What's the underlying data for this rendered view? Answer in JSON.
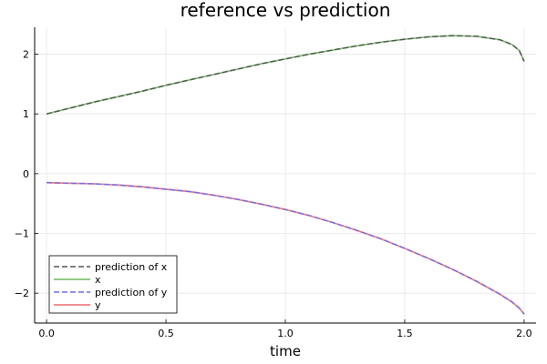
{
  "chart_data": {
    "type": "line",
    "title": "reference vs prediction",
    "xlabel": "time",
    "ylabel": "",
    "xlim": [
      -0.05,
      2.05
    ],
    "ylim": [
      -2.5,
      2.45
    ],
    "xticks": [
      0.0,
      0.5,
      1.0,
      1.5,
      2.0
    ],
    "xtick_labels": [
      "0.0",
      "0.5",
      "1.0",
      "1.5",
      "2.0"
    ],
    "yticks": [
      -2,
      -1,
      0,
      1,
      2
    ],
    "ytick_labels": [
      "−2",
      "−1",
      "0",
      "1",
      "2"
    ],
    "grid": true,
    "legend_position": "bottom-left",
    "x": [
      0.0,
      0.1,
      0.2,
      0.3,
      0.4,
      0.5,
      0.6,
      0.7,
      0.8,
      0.9,
      1.0,
      1.1,
      1.2,
      1.3,
      1.4,
      1.5,
      1.6,
      1.7,
      1.8,
      1.9,
      1.95,
      1.98,
      2.0
    ],
    "series": [
      {
        "name": "prediction of x",
        "color": "#555555",
        "dash": "dashed",
        "values": [
          1.0,
          1.1,
          1.2,
          1.29,
          1.38,
          1.48,
          1.57,
          1.66,
          1.75,
          1.84,
          1.92,
          2.0,
          2.07,
          2.14,
          2.2,
          2.25,
          2.29,
          2.31,
          2.3,
          2.24,
          2.16,
          2.06,
          1.88
        ]
      },
      {
        "name": "x",
        "color": "#82c276",
        "dash": "solid",
        "values": [
          1.0,
          1.1,
          1.2,
          1.29,
          1.38,
          1.48,
          1.57,
          1.66,
          1.75,
          1.84,
          1.92,
          2.0,
          2.07,
          2.14,
          2.2,
          2.25,
          2.29,
          2.31,
          2.3,
          2.24,
          2.16,
          2.06,
          1.88
        ]
      },
      {
        "name": "prediction of y",
        "color": "#6f6ff0",
        "dash": "dashed",
        "values": [
          -0.15,
          -0.16,
          -0.17,
          -0.19,
          -0.22,
          -0.26,
          -0.3,
          -0.36,
          -0.43,
          -0.51,
          -0.6,
          -0.7,
          -0.82,
          -0.95,
          -1.09,
          -1.25,
          -1.42,
          -1.6,
          -1.8,
          -2.02,
          -2.15,
          -2.25,
          -2.35
        ]
      },
      {
        "name": "y",
        "color": "#f08080",
        "dash": "solid",
        "values": [
          -0.15,
          -0.16,
          -0.17,
          -0.19,
          -0.22,
          -0.26,
          -0.3,
          -0.36,
          -0.43,
          -0.51,
          -0.6,
          -0.7,
          -0.82,
          -0.95,
          -1.09,
          -1.25,
          -1.42,
          -1.6,
          -1.8,
          -2.02,
          -2.15,
          -2.25,
          -2.35
        ]
      }
    ]
  }
}
